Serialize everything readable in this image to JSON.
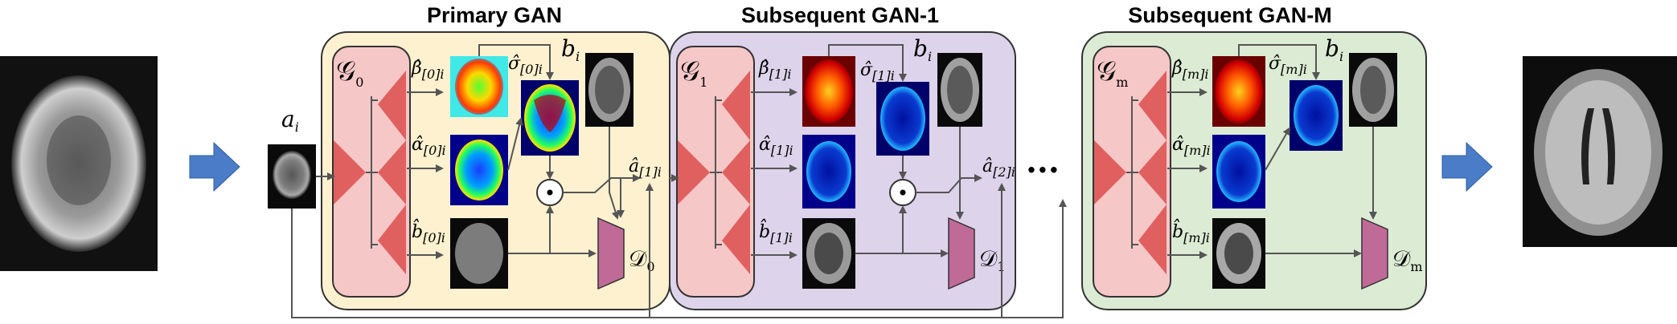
{
  "panels": {
    "primary": {
      "title": "Primary GAN",
      "generator": "𝒢",
      "generator_sub": "0",
      "discriminator": "𝒟",
      "discriminator_sub": "0",
      "beta_sub": "[0]i",
      "sigma_sub": "[0]i",
      "alpha_sub": "[0]i",
      "bhat_sub": "[0]i",
      "b_label": "b",
      "b_sub": "i",
      "out_label": "â",
      "out_sub": "[1]i",
      "fill": "#fdf1cf"
    },
    "gan1": {
      "title": "Subsequent GAN-1",
      "generator": "𝒢",
      "generator_sub": "1",
      "discriminator": "𝒟",
      "discriminator_sub": "1",
      "beta_sub": "[1]i",
      "sigma_sub": "[1]i",
      "alpha_sub": "[1]i",
      "bhat_sub": "[1]i",
      "b_label": "b",
      "b_sub": "i",
      "out_label": "â",
      "out_sub": "[2]i",
      "fill": "#ddd3ea"
    },
    "ganm": {
      "title": "Subsequent GAN-M",
      "generator": "𝒢",
      "generator_sub": "m",
      "discriminator": "𝒟",
      "discriminator_sub": "m",
      "beta_sub": "[m]i",
      "sigma_sub": "[m]i",
      "alpha_sub": "[m]i",
      "bhat_sub": "[m]i",
      "b_label": "b",
      "b_sub": "i",
      "fill": "#dcebd4"
    }
  },
  "symbols": {
    "beta": "β̂",
    "sigma": "σ̂",
    "alpha": "α̂",
    "bhat": "b̂",
    "elementwise": "⊙",
    "ellipsis": "···"
  },
  "input": {
    "label": "a",
    "sub": "i"
  },
  "colors": {
    "arrow_blue": "#4a7cc7",
    "generator_fill": "#f6c7c7",
    "generator_triangle": "#e06060",
    "discriminator_fill": "#c06a98"
  }
}
